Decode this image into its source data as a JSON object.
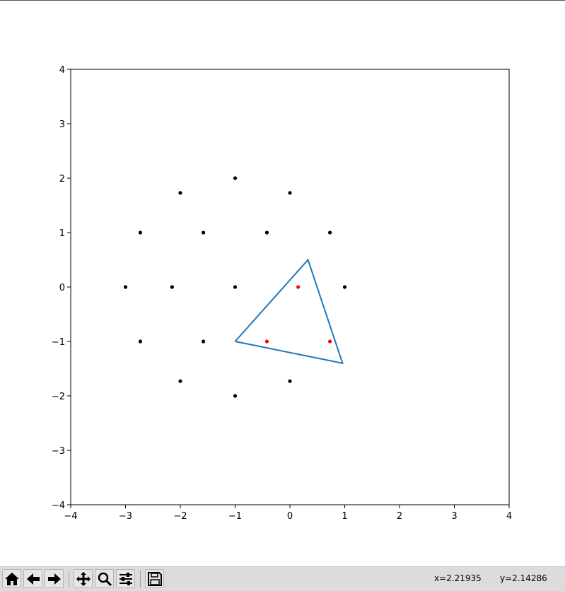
{
  "chart_data": {
    "type": "scatter",
    "title": "",
    "xlabel": "",
    "ylabel": "",
    "xlim": [
      -4,
      4
    ],
    "ylim": [
      -4,
      4
    ],
    "xticks": [
      -4,
      -3,
      -2,
      -1,
      0,
      1,
      2,
      3,
      4
    ],
    "yticks": [
      -4,
      -3,
      -2,
      -1,
      0,
      1,
      2,
      3,
      4
    ],
    "xtick_labels": [
      "−4",
      "−3",
      "−2",
      "−1",
      "0",
      "1",
      "2",
      "3",
      "4"
    ],
    "ytick_labels": [
      "−4",
      "−3",
      "−2",
      "−1",
      "0",
      "1",
      "2",
      "3",
      "4"
    ],
    "grid": false,
    "series": [
      {
        "color": "#000000",
        "kind": "points",
        "x": [
          -1,
          0,
          -2,
          -2.73,
          -1.58,
          -0.42,
          0.73,
          -3,
          -2.15,
          -1,
          1,
          -2.73,
          -1.58,
          -2,
          0,
          -1
        ],
        "y": [
          2,
          1.73,
          1.73,
          1,
          1,
          1,
          1,
          0,
          0,
          0,
          0,
          -1,
          -1,
          -1.73,
          -1.73,
          -2
        ]
      },
      {
        "color": "#ff0000",
        "kind": "points",
        "x": [
          0.15,
          -0.42,
          0.73
        ],
        "y": [
          0,
          -1,
          -1
        ]
      },
      {
        "color": "#1f77b4",
        "kind": "polygon",
        "x": [
          -1,
          0.33,
          0.96,
          -1
        ],
        "y": [
          -1,
          0.5,
          -1.4,
          -1
        ]
      }
    ]
  },
  "toolbar": {
    "buttons": [
      {
        "name": "home-button",
        "icon": "home-icon"
      },
      {
        "name": "back-button",
        "icon": "arrow-left-icon"
      },
      {
        "name": "forward-button",
        "icon": "arrow-right-icon"
      },
      {
        "name": "pan-button",
        "icon": "move-icon"
      },
      {
        "name": "zoom-button",
        "icon": "magnifier-icon"
      },
      {
        "name": "configure-button",
        "icon": "sliders-icon"
      },
      {
        "name": "save-button",
        "icon": "floppy-disk-icon"
      }
    ],
    "coord_x": "x=2.21935",
    "coord_y": "y=2.14286"
  }
}
